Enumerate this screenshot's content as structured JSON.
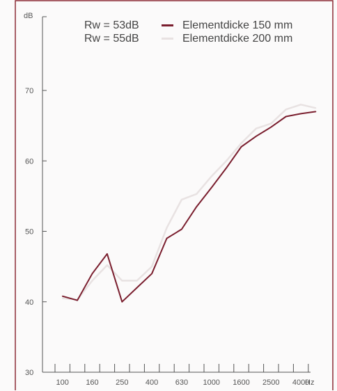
{
  "chart_data": {
    "type": "line",
    "ylabel": "dB",
    "xunit": "Hz",
    "ylim": [
      30,
      72
    ],
    "y_ticks": [
      30,
      40,
      50,
      60,
      70
    ],
    "x_positions": [
      "100",
      "125",
      "160",
      "200",
      "250",
      "315",
      "400",
      "500",
      "630",
      "800",
      "1000",
      "1250",
      "1600",
      "2000",
      "2500",
      "3150",
      "4000",
      "5000"
    ],
    "x_tick_labels": [
      "100",
      "160",
      "250",
      "400",
      "630",
      "1000",
      "1600",
      "2500",
      "4000"
    ],
    "grid": false,
    "legend_position": "top",
    "series": [
      {
        "name": "Elementdicke 150 mm",
        "rw_label": "Rw = 53dB",
        "color": "#7a1e2e",
        "values": [
          40.8,
          40.2,
          44,
          46.8,
          40,
          42,
          44,
          49,
          50.3,
          53.5,
          56.2,
          59,
          62,
          63.5,
          64.8,
          66.3,
          66.7,
          67
        ]
      },
      {
        "name": "Elementdicke 200 mm",
        "rw_label": "Rw = 55dB",
        "color": "#e8e2e2",
        "values": [
          40.5,
          40.3,
          43,
          45.2,
          43,
          43,
          45,
          50.5,
          54.5,
          55.3,
          57.8,
          60,
          62.5,
          64.6,
          65.3,
          67.3,
          68,
          67.5
        ]
      }
    ]
  }
}
